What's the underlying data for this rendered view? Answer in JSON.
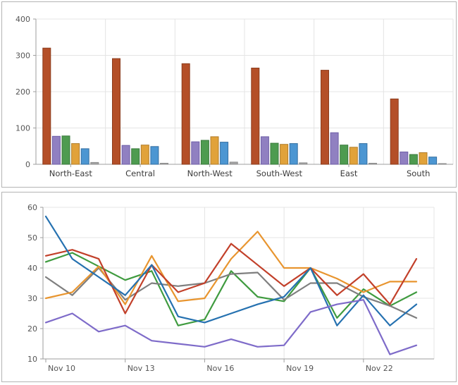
{
  "style": {
    "background": "#ffffff",
    "panel_border": "#b4b4b4",
    "grid_color": "#e4e4e4",
    "axis_color": "#9e9e9e",
    "tick_text_color": "#555555",
    "category_text_color": "#3a3a3a"
  },
  "chart_data": [
    {
      "type": "bar",
      "title": "",
      "categories": [
        "North-East",
        "Central",
        "North-West",
        "South-West",
        "East",
        "South"
      ],
      "series": [
        {
          "name": "red",
          "color": "#b44f28",
          "stroke": "#8c3c1d",
          "values": [
            320,
            291,
            277,
            265,
            259,
            180
          ]
        },
        {
          "name": "purple",
          "color": "#9080c1",
          "stroke": "#6f5fa7",
          "values": [
            77,
            52,
            62,
            76,
            87,
            34
          ]
        },
        {
          "name": "green",
          "color": "#4e9b50",
          "stroke": "#3a7a3c",
          "values": [
            78,
            43,
            66,
            58,
            53,
            27
          ]
        },
        {
          "name": "orange",
          "color": "#e1a23a",
          "stroke": "#b07d2b",
          "values": [
            57,
            53,
            76,
            55,
            47,
            32
          ]
        },
        {
          "name": "blue",
          "color": "#4c96d2",
          "stroke": "#356fa0",
          "values": [
            43,
            49,
            61,
            57,
            57,
            20
          ]
        },
        {
          "name": "gray",
          "color": "#a5a5a5",
          "stroke": "#8c8c8c",
          "values": [
            5,
            3,
            6,
            4,
            3,
            2
          ]
        }
      ],
      "ylim": [
        0,
        400
      ],
      "yticks": [
        0,
        100,
        200,
        300,
        400
      ],
      "grid": true,
      "legend": "none"
    },
    {
      "type": "line",
      "title": "",
      "x": [
        "Nov 10",
        "Nov 11",
        "Nov 12",
        "Nov 13",
        "Nov 14",
        "Nov 15",
        "Nov 16",
        "Nov 17",
        "Nov 18",
        "Nov 19",
        "Nov 20",
        "Nov 21",
        "Nov 22",
        "Nov 23",
        "Nov 24"
      ],
      "xtick_labels": [
        "Nov 10",
        "Nov 13",
        "Nov 16",
        "Nov 19",
        "Nov 22"
      ],
      "xtick_indices": [
        0,
        3,
        6,
        9,
        12
      ],
      "series": [
        {
          "name": "green",
          "color": "#3f9b3f",
          "values": [
            42,
            45,
            40.5,
            36,
            39,
            21,
            23,
            39,
            30.5,
            29,
            40,
            23.5,
            33,
            27.5,
            32
          ]
        },
        {
          "name": "gray",
          "color": "#7f7f7f",
          "values": [
            37,
            31,
            40,
            29.5,
            35,
            34,
            35,
            38,
            38.5,
            29.5,
            35,
            35,
            30.5,
            27.5,
            23.5
          ]
        },
        {
          "name": "orange",
          "color": "#e8952f",
          "values": [
            30,
            32,
            40.5,
            28,
            44,
            29,
            30,
            43,
            52,
            40,
            40,
            36.5,
            32,
            35.5,
            35.5
          ]
        },
        {
          "name": "red",
          "color": "#c2402a",
          "values": [
            44,
            46,
            43,
            25,
            41,
            32,
            35,
            48,
            41,
            34,
            40,
            31,
            38,
            28,
            43
          ]
        },
        {
          "name": "blue",
          "color": "#2571b0",
          "values": [
            57,
            43,
            37,
            31,
            41,
            24,
            22,
            25,
            28,
            30.5,
            40,
            21,
            31,
            21,
            28
          ]
        },
        {
          "name": "purple",
          "color": "#7e6bc9",
          "values": [
            22,
            25,
            19,
            21,
            16,
            15,
            14,
            16.5,
            14,
            14.5,
            25.5,
            28,
            29.5,
            11.5,
            14.5
          ]
        }
      ],
      "ylim": [
        10,
        60
      ],
      "yticks": [
        10,
        20,
        30,
        40,
        50,
        60
      ],
      "grid": true,
      "legend": "none"
    }
  ]
}
